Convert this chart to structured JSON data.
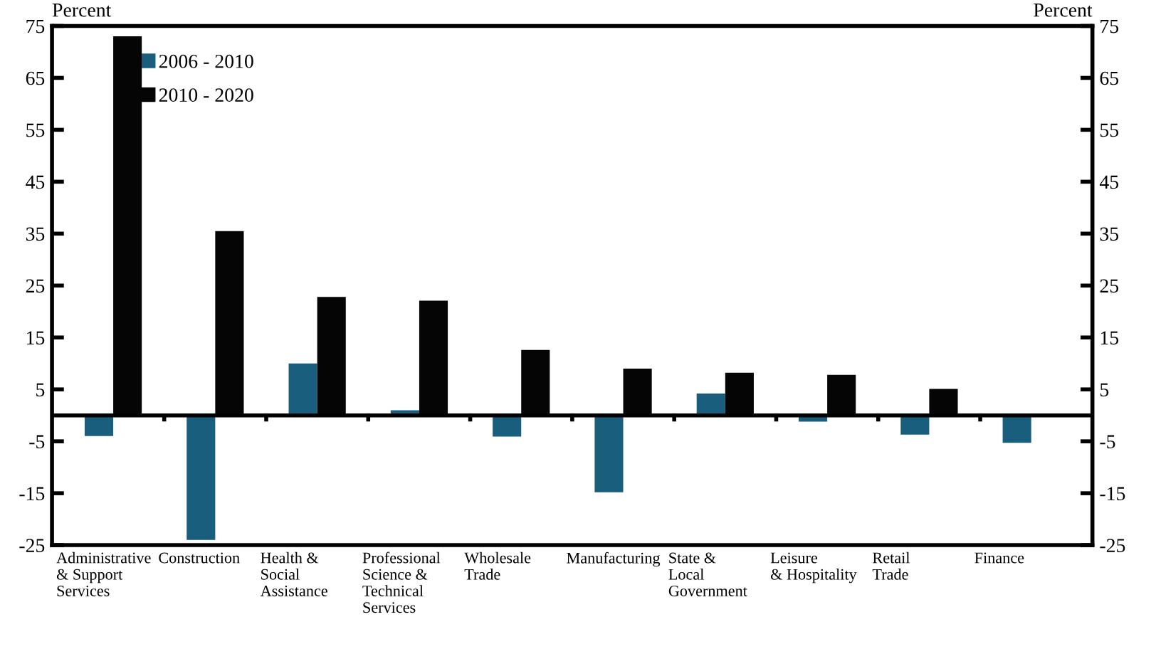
{
  "chart_data": {
    "type": "bar",
    "ylabel": "Percent",
    "y2label": "Percent",
    "categories": [
      "Administrative\n& Support\nServices",
      "Construction",
      "Health &\nSocial\nAssistance",
      "Professional\nScience &\nTechnical\nServices",
      "Wholesale\nTrade",
      "Manufacturing",
      "State &\nLocal\nGovernment",
      "Leisure\n& Hospitality",
      "Retail\nTrade",
      "Finance"
    ],
    "series": [
      {
        "name": "2006 - 2010",
        "color": "#1a5e7e",
        "values": [
          -4.0,
          -24.0,
          10.0,
          1.0,
          -4.1,
          -14.8,
          4.2,
          -1.2,
          -3.7,
          -5.3
        ]
      },
      {
        "name": "2010 - 2020",
        "color": "#050505",
        "values": [
          73.0,
          35.5,
          22.8,
          22.1,
          12.6,
          9.0,
          8.2,
          7.8,
          5.1,
          null
        ]
      }
    ],
    "ylim": [
      -25,
      75
    ],
    "yticks": [
      -25,
      -15,
      -5,
      5,
      15,
      25,
      35,
      45,
      55,
      65,
      75
    ],
    "y2lim": [
      -25,
      75
    ],
    "y2ticks": [
      -25,
      -15,
      -5,
      5,
      15,
      25,
      35,
      45,
      55,
      65,
      75
    ],
    "ref_lines": [
      {
        "axis": "y",
        "value": 0,
        "color": "#000000"
      }
    ],
    "legend": "top left",
    "grid": false
  }
}
